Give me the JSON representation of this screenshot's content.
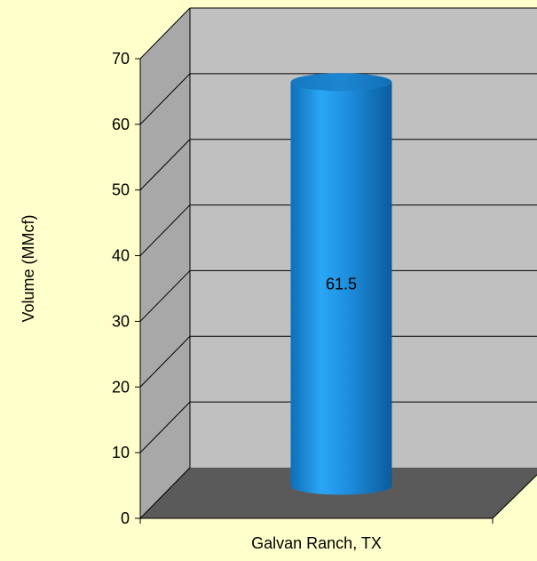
{
  "chart_data": {
    "type": "bar",
    "style": "3d-cylinder",
    "categories": [
      "Galvan Ranch, TX"
    ],
    "values": [
      61.5
    ],
    "data_labels": [
      "61.5"
    ],
    "title": "",
    "xlabel": "",
    "ylabel": "Volume (MMcf)",
    "ylim": [
      0,
      70
    ],
    "yticks": [
      0,
      10,
      20,
      30,
      40,
      50,
      60,
      70
    ],
    "ytick_labels": [
      "0",
      "10",
      "20",
      "30",
      "40",
      "50",
      "60",
      "70"
    ],
    "grid": true,
    "legend": "none",
    "colors": {
      "background": "#FFFFCC",
      "wall": "#C0C0C0",
      "floor": "#5A5A5A",
      "bar": "#1E90E0",
      "bar_top": "#1A7CC4",
      "gridline": "#000000"
    }
  }
}
